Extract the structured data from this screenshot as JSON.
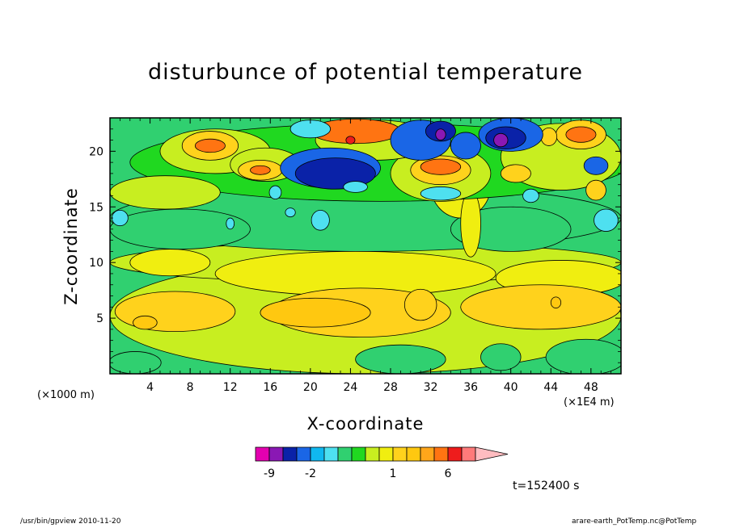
{
  "chart_data": {
    "type": "heatmap",
    "title": "disturbunce of potential temperature",
    "xlabel": "X-coordinate",
    "ylabel": "Z-coordinate",
    "x_unit_left": "(×1000 m)",
    "x_unit_right": "(×1E4 m)",
    "xlim": [
      0,
      51
    ],
    "ylim": [
      0,
      23
    ],
    "x_ticks": [
      4,
      8,
      12,
      16,
      20,
      24,
      28,
      32,
      36,
      40,
      44,
      48
    ],
    "x_tick_labels": [
      "4",
      "8",
      "12",
      "16",
      "20",
      "24",
      "28",
      "32",
      "36",
      "40",
      "44",
      "48"
    ],
    "y_ticks": [
      5,
      10,
      15,
      20
    ],
    "y_tick_labels": [
      "5",
      "10",
      "15",
      "20"
    ],
    "colorbar": {
      "levels": [
        -12,
        -9,
        -6,
        -3,
        -2,
        -1.5,
        -1,
        -0.5,
        0,
        0.5,
        1,
        1.5,
        2,
        4,
        6,
        8,
        10
      ],
      "colors": [
        "#e400b0",
        "#8a18b4",
        "#0a22a8",
        "#1a66e6",
        "#10b8f0",
        "#4ee0f0",
        "#30d070",
        "#20d820",
        "#c8ee20",
        "#f0ee10",
        "#ffd21c",
        "#ffc810",
        "#ffa61a",
        "#ff7412",
        "#ee1c1c",
        "#ff7a7a",
        "#ffbcc0"
      ],
      "labels": [
        "-9",
        "-2",
        "1",
        "6"
      ],
      "label_values": [
        -9,
        -2,
        1,
        6
      ],
      "extend": "max"
    },
    "regions": [
      {
        "level": 0.25,
        "x": 25.5,
        "z": 5.2,
        "rx": 25.5,
        "rz": 5.2
      },
      {
        "level": 0.25,
        "x": 25.5,
        "z": 10.0,
        "rx": 25.5,
        "rz": 1.8
      },
      {
        "level": -0.75,
        "x": 25.5,
        "z": 14.0,
        "rx": 25.5,
        "rz": 3.0
      },
      {
        "level": -0.75,
        "x": 7.0,
        "z": 13.0,
        "rx": 7.0,
        "rz": 1.8
      },
      {
        "level": -0.75,
        "x": 40.0,
        "z": 13.0,
        "rx": 6.0,
        "rz": 2.0
      },
      {
        "level": 0.75,
        "x": 24.5,
        "z": 9.0,
        "rx": 14.0,
        "rz": 2.0
      },
      {
        "level": 0.75,
        "x": 45.0,
        "z": 8.6,
        "rx": 6.5,
        "rz": 1.6
      },
      {
        "level": 0.75,
        "x": 6.0,
        "z": 10.0,
        "rx": 4.0,
        "rz": 1.2
      },
      {
        "level": 0.75,
        "x": 35.0,
        "z": 17.0,
        "rx": 3.0,
        "rz": 3.0
      },
      {
        "level": 0.75,
        "x": 36.0,
        "z": 13.5,
        "rx": 1.0,
        "rz": 3.0
      },
      {
        "level": -0.75,
        "x": 2.5,
        "z": 1.0,
        "rx": 2.6,
        "rz": 1.0
      },
      {
        "level": -0.75,
        "x": 29.0,
        "z": 1.3,
        "rx": 4.5,
        "rz": 1.3
      },
      {
        "level": -0.75,
        "x": 39.0,
        "z": 1.5,
        "rx": 2.0,
        "rz": 1.2
      },
      {
        "level": -0.75,
        "x": 47.5,
        "z": 1.5,
        "rx": 4.0,
        "rz": 1.6
      },
      {
        "level": 1.25,
        "x": 25.0,
        "z": 5.5,
        "rx": 9.0,
        "rz": 2.2
      },
      {
        "level": 1.25,
        "x": 43.0,
        "z": 6.0,
        "rx": 8.0,
        "rz": 2.0
      },
      {
        "level": 1.25,
        "x": 6.5,
        "z": 5.6,
        "rx": 6.0,
        "rz": 1.8
      },
      {
        "level": 1.25,
        "x": 31.0,
        "z": 6.2,
        "rx": 1.6,
        "rz": 1.4
      },
      {
        "level": 1.75,
        "x": 20.5,
        "z": 5.5,
        "rx": 5.5,
        "rz": 1.3
      },
      {
        "level": 1.75,
        "x": 3.5,
        "z": 4.6,
        "rx": 1.2,
        "rz": 0.6
      },
      {
        "level": 1.75,
        "x": 44.5,
        "z": 6.4,
        "rx": 0.5,
        "rz": 0.5
      },
      {
        "level": -0.25,
        "x": 27.0,
        "z": 19.0,
        "rx": 25.0,
        "rz": 3.5
      },
      {
        "level": 0.25,
        "x": 5.5,
        "z": 16.3,
        "rx": 5.5,
        "rz": 1.5
      },
      {
        "level": 0.25,
        "x": 10.5,
        "z": 20.0,
        "rx": 5.5,
        "rz": 2.0
      },
      {
        "level": 0.25,
        "x": 15.5,
        "z": 18.8,
        "rx": 3.5,
        "rz": 1.5
      },
      {
        "level": 0.25,
        "x": 33.0,
        "z": 18.0,
        "rx": 5.0,
        "rz": 2.5
      },
      {
        "level": 0.25,
        "x": 45.0,
        "z": 19.5,
        "rx": 6.0,
        "rz": 3.0
      },
      {
        "level": 0.25,
        "x": 26.5,
        "z": 21.0,
        "rx": 6.0,
        "rz": 1.8
      },
      {
        "level": 1.25,
        "x": 10.0,
        "z": 20.5,
        "rx": 2.8,
        "rz": 1.3
      },
      {
        "level": 1.25,
        "x": 15.0,
        "z": 18.3,
        "rx": 2.2,
        "rz": 0.9
      },
      {
        "level": 1.25,
        "x": 33.0,
        "z": 18.3,
        "rx": 3.0,
        "rz": 1.3
      },
      {
        "level": 1.25,
        "x": 40.5,
        "z": 18.0,
        "rx": 1.5,
        "rz": 0.8
      },
      {
        "level": 1.25,
        "x": 47.0,
        "z": 21.5,
        "rx": 2.5,
        "rz": 1.3
      },
      {
        "level": 1.25,
        "x": 48.5,
        "z": 16.5,
        "rx": 1.0,
        "rz": 0.9
      },
      {
        "level": 1.25,
        "x": 43.8,
        "z": 21.3,
        "rx": 0.8,
        "rz": 0.8
      },
      {
        "level": 5,
        "x": 24.5,
        "z": 21.8,
        "rx": 4.5,
        "rz": 1.1
      },
      {
        "level": 5,
        "x": 10.0,
        "z": 20.5,
        "rx": 1.5,
        "rz": 0.6
      },
      {
        "level": 5,
        "x": 33.0,
        "z": 18.6,
        "rx": 2.0,
        "rz": 0.7
      },
      {
        "level": 5,
        "x": 47.0,
        "z": 21.5,
        "rx": 1.5,
        "rz": 0.7
      },
      {
        "level": 5,
        "x": 15.0,
        "z": 18.3,
        "rx": 1.0,
        "rz": 0.4
      },
      {
        "level": 7,
        "x": 24.0,
        "z": 21.0,
        "rx": 0.45,
        "rz": 0.35
      },
      {
        "level": -2.5,
        "x": 22.0,
        "z": 18.5,
        "rx": 5.0,
        "rz": 1.8
      },
      {
        "level": -2.5,
        "x": 31.0,
        "z": 21.0,
        "rx": 3.0,
        "rz": 1.8
      },
      {
        "level": -2.5,
        "x": 40.0,
        "z": 21.5,
        "rx": 3.2,
        "rz": 1.5
      },
      {
        "level": -2.5,
        "x": 48.5,
        "z": 18.7,
        "rx": 1.2,
        "rz": 0.8
      },
      {
        "level": -2.5,
        "x": 35.5,
        "z": 20.5,
        "rx": 1.5,
        "rz": 1.2
      },
      {
        "level": -4.5,
        "x": 22.5,
        "z": 18.0,
        "rx": 4.0,
        "rz": 1.4
      },
      {
        "level": -4.5,
        "x": 33.0,
        "z": 21.8,
        "rx": 1.5,
        "rz": 0.9
      },
      {
        "level": -4.5,
        "x": 39.5,
        "z": 21.2,
        "rx": 2.0,
        "rz": 1.0
      },
      {
        "level": -7.5,
        "x": 39.0,
        "z": 21.0,
        "rx": 0.7,
        "rz": 0.6
      },
      {
        "level": -7.5,
        "x": 33.0,
        "z": 21.5,
        "rx": 0.5,
        "rz": 0.5
      },
      {
        "level": -1.25,
        "x": 16.5,
        "z": 16.3,
        "rx": 0.6,
        "rz": 0.6
      },
      {
        "level": -1.25,
        "x": 33.0,
        "z": 16.2,
        "rx": 2.0,
        "rz": 0.6
      },
      {
        "level": -1.25,
        "x": 42.0,
        "z": 16.0,
        "rx": 0.8,
        "rz": 0.6
      },
      {
        "level": -1.25,
        "x": 49.5,
        "z": 13.8,
        "rx": 1.2,
        "rz": 1.0
      },
      {
        "level": -1.25,
        "x": 24.5,
        "z": 16.8,
        "rx": 1.2,
        "rz": 0.5
      },
      {
        "level": -1.25,
        "x": 21.0,
        "z": 13.8,
        "rx": 0.9,
        "rz": 0.9
      },
      {
        "level": -1.25,
        "x": 12.0,
        "z": 13.5,
        "rx": 0.4,
        "rz": 0.5
      },
      {
        "level": -1.25,
        "x": 20.0,
        "z": 22.0,
        "rx": 2.0,
        "rz": 0.8
      },
      {
        "level": -1.25,
        "x": 1.0,
        "z": 14.0,
        "rx": 0.8,
        "rz": 0.7
      },
      {
        "level": -1.25,
        "x": 18.0,
        "z": 14.5,
        "rx": 0.5,
        "rz": 0.4
      }
    ]
  },
  "annotations": {
    "time": "t=152400 s",
    "footer_left": "/usr/bin/gpview   2010-11-20",
    "footer_right": "arare-earth_PotTemp.nc@PotTemp"
  }
}
